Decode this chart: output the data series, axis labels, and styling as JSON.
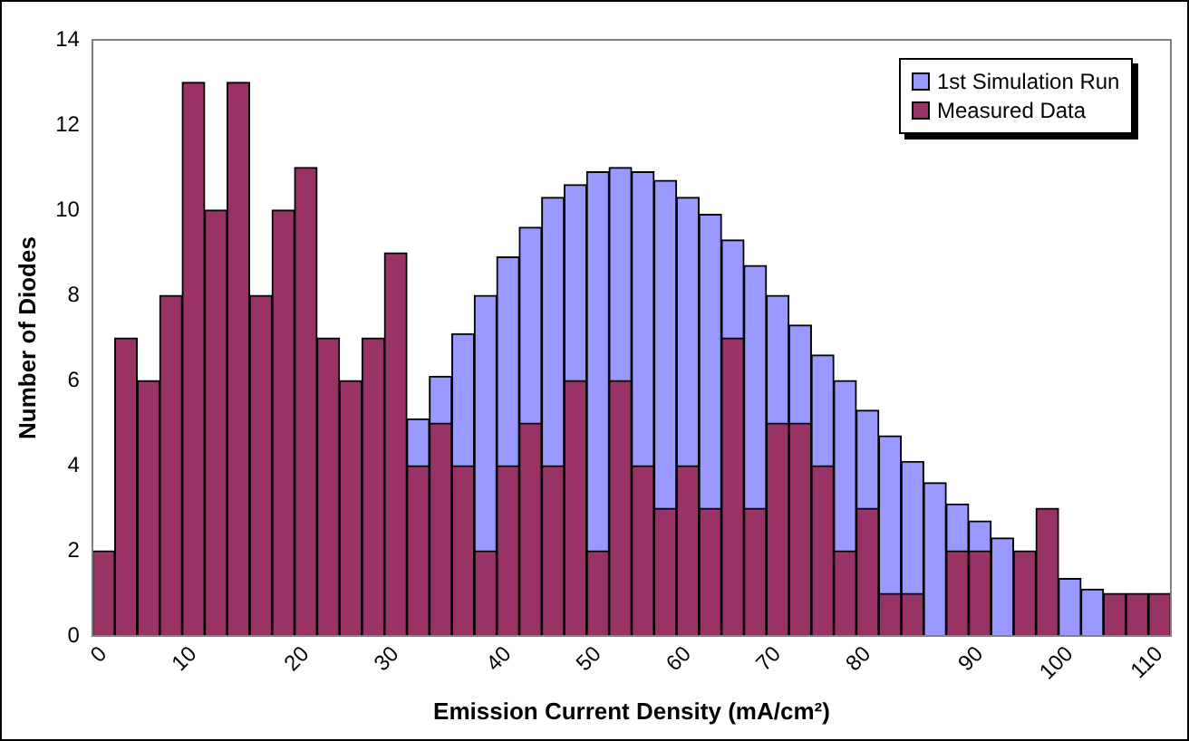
{
  "chart_data": {
    "type": "bar",
    "xlabel": "Emission Current Density (mA/cm²)",
    "ylabel": "Number of Diodes",
    "categories": [
      "0",
      null,
      null,
      null,
      "10",
      null,
      null,
      null,
      null,
      "20",
      null,
      null,
      null,
      "30",
      null,
      null,
      null,
      null,
      "40",
      null,
      null,
      null,
      "50",
      null,
      null,
      null,
      "60",
      null,
      null,
      null,
      "70",
      null,
      null,
      null,
      "80",
      null,
      null,
      null,
      null,
      "90",
      null,
      null,
      null,
      "100",
      null,
      null,
      null,
      "110"
    ],
    "series": [
      {
        "name": "Measured Data",
        "color": "#993366",
        "values": [
          2,
          7,
          6,
          8,
          13,
          10,
          13,
          8,
          10,
          11,
          7,
          6,
          7,
          9,
          4,
          5,
          4,
          2,
          4,
          5,
          4,
          6,
          2,
          6,
          4,
          3,
          4,
          3,
          7,
          3,
          5,
          5,
          4,
          2,
          3,
          1,
          1,
          0,
          2,
          2,
          0,
          2,
          3,
          0,
          0,
          1,
          1,
          1
        ]
      },
      {
        "name": "1st Simulation Run",
        "color": "#9999ff",
        "values": [
          null,
          null,
          null,
          null,
          null,
          null,
          null,
          null,
          null,
          null,
          null,
          null,
          null,
          null,
          1.1,
          1.1,
          3.1,
          6.0,
          4.9,
          4.6,
          6.3,
          4.6,
          8.9,
          5.0,
          6.9,
          7.7,
          6.3,
          6.9,
          2.3,
          5.7,
          3.0,
          2.3,
          2.6,
          4.0,
          2.3,
          3.7,
          3.1,
          3.6,
          1.1,
          0.7,
          2.3,
          null,
          null,
          1.35,
          1.1,
          null,
          null,
          null
        ]
      }
    ],
    "stacked": true,
    "ylim": [
      0,
      14
    ],
    "yticks": [
      0,
      2,
      4,
      6,
      8,
      10,
      12,
      14
    ],
    "grid": false,
    "legend": "top right"
  }
}
